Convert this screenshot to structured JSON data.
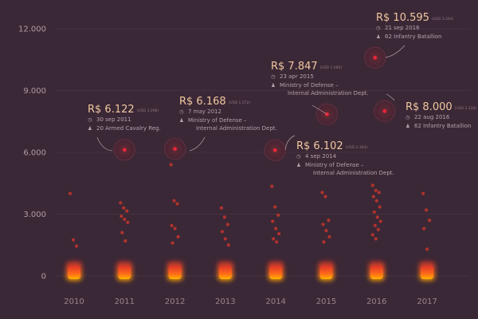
{
  "chart_data": {
    "type": "scatter",
    "categories": [
      "2010",
      "2011",
      "2012",
      "2013",
      "2014",
      "2015",
      "2016",
      "2017"
    ],
    "ylim": [
      0,
      12000
    ],
    "yticks": [
      0,
      3000,
      6000,
      9000,
      12000
    ],
    "ytick_labels": [
      "0",
      "3.000",
      "6.000",
      "9.000",
      "12.000"
    ],
    "grid": true,
    "colors": {
      "background": "#3b2836",
      "dot": "#ff3a28",
      "highlight": "#e8263a",
      "annotation": "#f0c8a0"
    },
    "outliers": [
      {
        "year": "2010",
        "values": [
          4000,
          1750,
          1450
        ]
      },
      {
        "year": "2011",
        "values": [
          3550,
          3300,
          3150,
          2900,
          2750,
          2600,
          2100,
          1700
        ]
      },
      {
        "year": "2012",
        "values": [
          5400,
          3650,
          3500,
          2450,
          2300,
          1900,
          1600
        ]
      },
      {
        "year": "2013",
        "values": [
          3300,
          2850,
          2500,
          2150,
          1800,
          1500
        ]
      },
      {
        "year": "2014",
        "values": [
          4350,
          3350,
          2950,
          2650,
          2300,
          2050,
          1800,
          1650
        ]
      },
      {
        "year": "2015",
        "values": [
          4050,
          3850,
          2700,
          2500,
          2200,
          1900,
          1650
        ]
      },
      {
        "year": "2016",
        "values": [
          4400,
          4150,
          4050,
          3850,
          3650,
          3350,
          3100,
          2850,
          2650,
          2450,
          2250,
          2000,
          1800
        ]
      },
      {
        "year": "2017",
        "values": [
          4000,
          3200,
          2700,
          2300,
          1300
        ]
      }
    ],
    "highlights": [
      {
        "year": "2011",
        "value": 6122,
        "value_label": "R$ 6.122",
        "usd_label": "(USD 3.298)",
        "date": "30 sep 2011",
        "org_lines": [
          "20 Armed Cavalry Reg."
        ],
        "org_icon": "group-icon"
      },
      {
        "year": "2012",
        "value": 6168,
        "value_label": "R$ 6.168",
        "usd_label": "(USD 1.372)",
        "date": "7 may 2012",
        "org_lines": [
          "Ministry of Defense –",
          "Internal Administration Dept."
        ],
        "org_icon": "group-icon"
      },
      {
        "year": "2014",
        "value": 6102,
        "value_label": "R$ 6.102",
        "usd_label": "(USD 2.364)",
        "date": "4 sep 2014",
        "org_lines": [
          "Ministry of Defense –",
          "Internal Administration Dept."
        ],
        "org_icon": "group-icon"
      },
      {
        "year": "2015",
        "value": 7847,
        "value_label": "R$ 7.847",
        "usd_label": "(USD 2.080)",
        "date": "23 apr 2015",
        "org_lines": [
          "Ministry of Defense –",
          "Internal Administration Dept."
        ],
        "org_icon": "group-icon"
      },
      {
        "year": "2016",
        "value": 10595,
        "value_label": "R$ 10.595",
        "usd_label": "(USD 3.344)",
        "date": "21 sep 2016",
        "org_lines": [
          "62 Infantry Batallion"
        ],
        "org_icon": "group-icon"
      },
      {
        "year": "2016",
        "value": 8000,
        "value_label": "R$ 8.000",
        "usd_label": "(USD 2.338)",
        "date": "22 aug 2016",
        "org_lines": [
          "62 Infantry Batallion"
        ],
        "org_icon": "group-icon"
      }
    ]
  }
}
